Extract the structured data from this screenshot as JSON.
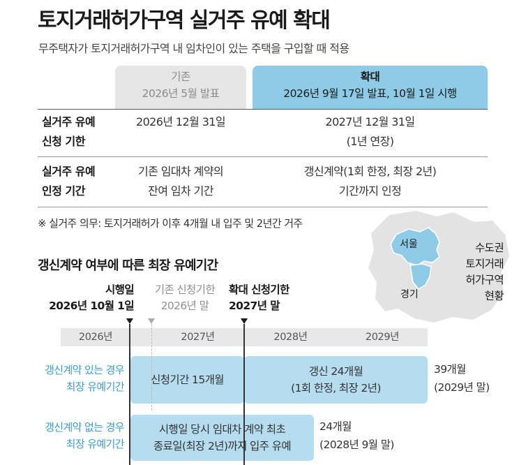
{
  "title": "토지거래허가구역 실거주 유예 확대",
  "subtitle": "무주택자가 토지거래허가구역 내 임차인이 있는 주택을 구입할 때 적용",
  "table": {
    "header_old": {
      "label": "기존",
      "sub": "2026년 5월 발표"
    },
    "header_new": {
      "label": "확대",
      "sub": "2026년 9월 17일 발표, 10월 1일 시행"
    },
    "rows": [
      {
        "label_l1": "실거주 유예",
        "label_l2": "신청 기한",
        "old_l1": "2026년 12월 31일",
        "old_l2": "",
        "new_l1": "2027년 12월 31일",
        "new_l2": "(1년 연장)"
      },
      {
        "label_l1": "실거주 유예",
        "label_l2": "인정 기간",
        "old_l1": "기존 임대차 계약의",
        "old_l2": "잔여 임차 기간",
        "new_l1": "갱신계약(1회 한정, 최장 2년)",
        "new_l2": "기간까지 인정"
      }
    ]
  },
  "note": "※ 실거주 의무: 토지거래허가 이후 4개월 내 입주 및 2년간 거주",
  "map": {
    "seoul_label": "서울",
    "gyeonggi_label": "경기",
    "caption": [
      "수도권",
      "토지거래",
      "허가구역",
      "현황"
    ],
    "color_seoul": "#8ecbe6",
    "color_land": "#e3e3e3"
  },
  "timeline": {
    "section_title": "갱신계약 여부에 따른 최장 유예기간",
    "markers": {
      "effective": {
        "l1": "시행일",
        "l2": "2026년 10월 1일"
      },
      "old_deadline": {
        "l1": "기존 신청기한",
        "l2": "2026년 말"
      },
      "new_deadline": {
        "l1": "확대 신청기한",
        "l2": "2027년 말"
      }
    },
    "years": [
      "2026년",
      "2027년",
      "2028년",
      "2029년"
    ],
    "rows": [
      {
        "label_l1": "갱신계약 있는 경우",
        "label_l2": "최장 유예기간",
        "bar1": "신청기간 15개월",
        "bar2_l1": "갱신 24개월",
        "bar2_l2": "(1회 한정, 최장 2년)",
        "total_l1": "39개월",
        "total_l2": "(2029년 말)"
      },
      {
        "label_l1": "갱신계약 없는 경우",
        "label_l2": "최장 유예기간",
        "bar_l1": "시행일 당시 임대차 계약 최초",
        "bar_l2": "종료일(최장 2년)까지 입주 유예",
        "total_l1": "24개월",
        "total_l2": "(2028년 9월 말)"
      }
    ]
  },
  "colors": {
    "accent_blue": "#8ecbe6",
    "bar_blue": "#b5dcef",
    "label_blue": "#3e9bd0",
    "header_grey": "#e6e6e6"
  }
}
